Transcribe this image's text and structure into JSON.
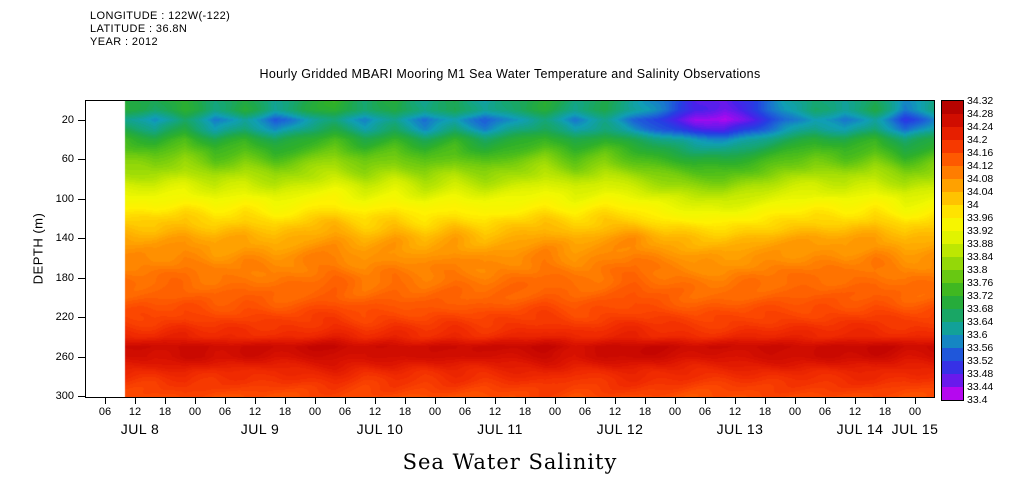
{
  "meta": {
    "longitude": "LONGITUDE : 122W(-122)",
    "latitude": "LATITUDE : 36.8N",
    "year": "YEAR : 2012"
  },
  "title": "Hourly Gridded MBARI Mooring M1 Sea Water Temperature and Salinity Observations",
  "axis": {
    "y_label": "DEPTH (m)",
    "x_title": "Sea Water Salinity",
    "y_ticks": [
      20,
      60,
      100,
      140,
      180,
      220,
      260,
      300
    ],
    "x_ticks": [
      {
        "hour": 6,
        "label": "06"
      },
      {
        "hour": 12,
        "label": "12"
      },
      {
        "hour": 18,
        "label": "18"
      },
      {
        "hour": 24,
        "label": "00"
      },
      {
        "hour": 30,
        "label": "06"
      },
      {
        "hour": 36,
        "label": "12"
      },
      {
        "hour": 42,
        "label": "18"
      },
      {
        "hour": 48,
        "label": "00"
      },
      {
        "hour": 54,
        "label": "06"
      },
      {
        "hour": 60,
        "label": "12"
      },
      {
        "hour": 66,
        "label": "18"
      },
      {
        "hour": 72,
        "label": "00"
      },
      {
        "hour": 78,
        "label": "06"
      },
      {
        "hour": 84,
        "label": "12"
      },
      {
        "hour": 90,
        "label": "18"
      },
      {
        "hour": 96,
        "label": "00"
      },
      {
        "hour": 102,
        "label": "06"
      },
      {
        "hour": 108,
        "label": "12"
      },
      {
        "hour": 114,
        "label": "18"
      },
      {
        "hour": 120,
        "label": "00"
      },
      {
        "hour": 126,
        "label": "06"
      },
      {
        "hour": 132,
        "label": "12"
      },
      {
        "hour": 138,
        "label": "18"
      },
      {
        "hour": 144,
        "label": "00"
      },
      {
        "hour": 150,
        "label": "06"
      },
      {
        "hour": 156,
        "label": "12"
      },
      {
        "hour": 162,
        "label": "18"
      },
      {
        "hour": 168,
        "label": "00"
      }
    ],
    "day_labels": [
      {
        "hour": 13,
        "label": "JUL 8"
      },
      {
        "hour": 37,
        "label": "JUL 9"
      },
      {
        "hour": 61,
        "label": "JUL 10"
      },
      {
        "hour": 85,
        "label": "JUL 11"
      },
      {
        "hour": 109,
        "label": "JUL 12"
      },
      {
        "hour": 133,
        "label": "JUL 13"
      },
      {
        "hour": 157,
        "label": "JUL 14"
      },
      {
        "hour": 168,
        "label": "JUL 15"
      }
    ]
  },
  "colorbar": {
    "labels": [
      "34.32",
      "34.28",
      "34.24",
      "34.2",
      "34.16",
      "34.12",
      "34.08",
      "34.04",
      "34",
      "33.96",
      "33.92",
      "33.88",
      "33.84",
      "33.8",
      "33.76",
      "33.72",
      "33.68",
      "33.64",
      "33.6",
      "33.56",
      "33.52",
      "33.48",
      "33.44",
      "33.4"
    ]
  },
  "chart_data": {
    "type": "heatmap",
    "title": "Hourly Gridded MBARI Mooring M1 Sea Water Temperature and Salinity Observations",
    "variable": "Sea Water Salinity",
    "ylabel": "DEPTH (m)",
    "y_axis_range_m": [
      0,
      302
    ],
    "x_axis_range_hours": [
      2,
      172
    ],
    "x_time_origin": "JUL 8 2012 00:00",
    "value_min": 33.4,
    "value_max": 34.32,
    "colorbar_step": 0.04,
    "depths_m": [
      10,
      20,
      30,
      40,
      60,
      80,
      100,
      120,
      140,
      160,
      180,
      200,
      220,
      240,
      250,
      260,
      275,
      300
    ],
    "time_hours": [
      10,
      16,
      22,
      28,
      34,
      40,
      46,
      52,
      58,
      64,
      70,
      76,
      82,
      88,
      94,
      100,
      106,
      112,
      118,
      124,
      130,
      136,
      142,
      148,
      154,
      160,
      166,
      172
    ],
    "values": [
      [
        33.7,
        33.66,
        33.72,
        33.64,
        33.7,
        33.62,
        33.68,
        33.72,
        33.65,
        33.7,
        33.63,
        33.68,
        33.61,
        33.66,
        33.7,
        33.64,
        33.68,
        33.62,
        33.56,
        33.48,
        33.45,
        33.52,
        33.6,
        33.66,
        33.62,
        33.68,
        33.57,
        33.64
      ],
      [
        33.64,
        33.58,
        33.66,
        33.56,
        33.62,
        33.54,
        33.6,
        33.65,
        33.57,
        33.63,
        33.55,
        33.61,
        33.54,
        33.6,
        33.64,
        33.57,
        33.62,
        33.55,
        33.5,
        33.44,
        33.42,
        33.48,
        33.55,
        33.6,
        33.56,
        33.62,
        33.51,
        33.58
      ],
      [
        33.68,
        33.62,
        33.7,
        33.6,
        33.66,
        33.58,
        33.64,
        33.68,
        33.61,
        33.66,
        33.59,
        33.65,
        33.58,
        33.63,
        33.67,
        33.6,
        33.65,
        33.59,
        33.54,
        33.49,
        33.47,
        33.53,
        33.59,
        33.64,
        33.6,
        33.66,
        33.55,
        33.62
      ],
      [
        33.74,
        33.7,
        33.76,
        33.68,
        33.73,
        33.66,
        33.71,
        33.75,
        33.69,
        33.73,
        33.67,
        33.72,
        33.66,
        33.7,
        33.74,
        33.68,
        33.72,
        33.67,
        33.63,
        33.59,
        33.58,
        33.62,
        33.67,
        33.71,
        33.68,
        33.73,
        33.64,
        33.7
      ],
      [
        33.8,
        33.78,
        33.82,
        33.76,
        33.8,
        33.75,
        33.79,
        33.82,
        33.77,
        33.8,
        33.76,
        33.79,
        33.75,
        33.78,
        33.81,
        33.76,
        33.8,
        33.76,
        33.73,
        33.7,
        33.69,
        33.72,
        33.76,
        33.79,
        33.76,
        33.8,
        33.73,
        33.78
      ],
      [
        33.86,
        33.85,
        33.88,
        33.84,
        33.87,
        33.83,
        33.86,
        33.88,
        33.84,
        33.87,
        33.83,
        33.86,
        33.83,
        33.85,
        33.88,
        33.84,
        33.87,
        33.84,
        33.81,
        33.79,
        33.78,
        33.81,
        33.84,
        33.86,
        33.84,
        33.87,
        33.82,
        33.85
      ],
      [
        33.93,
        33.92,
        33.95,
        33.91,
        33.94,
        33.9,
        33.93,
        33.95,
        33.91,
        33.94,
        33.9,
        33.93,
        33.9,
        33.92,
        33.94,
        33.91,
        33.94,
        33.92,
        33.89,
        33.87,
        33.86,
        33.89,
        33.91,
        33.93,
        33.91,
        33.94,
        33.89,
        33.92
      ],
      [
        34.0,
        33.99,
        34.02,
        33.98,
        34.01,
        33.97,
        34.0,
        34.02,
        33.98,
        34.01,
        33.97,
        34.0,
        33.97,
        33.99,
        34.01,
        33.98,
        34.01,
        34.0,
        33.96,
        33.95,
        33.94,
        33.96,
        33.98,
        34.0,
        33.98,
        34.01,
        33.96,
        33.99
      ],
      [
        34.06,
        34.05,
        34.07,
        34.04,
        34.06,
        34.03,
        34.06,
        34.07,
        34.04,
        34.06,
        34.03,
        34.06,
        34.03,
        34.05,
        34.07,
        34.04,
        34.06,
        34.08,
        34.04,
        34.03,
        34.02,
        34.04,
        34.05,
        34.06,
        34.05,
        34.07,
        34.03,
        34.05
      ],
      [
        34.09,
        34.08,
        34.1,
        34.07,
        34.09,
        34.07,
        34.09,
        34.1,
        34.07,
        34.09,
        34.07,
        34.09,
        34.07,
        34.08,
        34.1,
        34.08,
        34.09,
        34.11,
        34.08,
        34.07,
        34.06,
        34.08,
        34.08,
        34.09,
        34.08,
        34.1,
        34.07,
        34.08
      ],
      [
        34.11,
        34.11,
        34.12,
        34.1,
        34.11,
        34.1,
        34.11,
        34.12,
        34.1,
        34.11,
        34.1,
        34.11,
        34.1,
        34.11,
        34.12,
        34.1,
        34.11,
        34.13,
        34.11,
        34.1,
        34.09,
        34.11,
        34.11,
        34.12,
        34.11,
        34.12,
        34.1,
        34.11
      ],
      [
        34.13,
        34.13,
        34.14,
        34.12,
        34.14,
        34.12,
        34.13,
        34.14,
        34.12,
        34.13,
        34.12,
        34.13,
        34.12,
        34.13,
        34.14,
        34.13,
        34.13,
        34.15,
        34.13,
        34.12,
        34.12,
        34.13,
        34.13,
        34.14,
        34.13,
        34.14,
        34.12,
        34.13
      ],
      [
        34.17,
        34.16,
        34.18,
        34.16,
        34.17,
        34.16,
        34.17,
        34.18,
        34.16,
        34.17,
        34.16,
        34.17,
        34.16,
        34.17,
        34.18,
        34.16,
        34.17,
        34.18,
        34.17,
        34.16,
        34.16,
        34.17,
        34.17,
        34.17,
        34.17,
        34.18,
        34.16,
        34.17
      ],
      [
        34.21,
        34.2,
        34.22,
        34.2,
        34.21,
        34.2,
        34.21,
        34.22,
        34.2,
        34.21,
        34.2,
        34.21,
        34.2,
        34.21,
        34.22,
        34.2,
        34.21,
        34.22,
        34.21,
        34.2,
        34.2,
        34.21,
        34.21,
        34.21,
        34.21,
        34.22,
        34.2,
        34.21
      ],
      [
        34.27,
        34.26,
        34.28,
        34.26,
        34.27,
        34.26,
        34.27,
        34.28,
        34.26,
        34.27,
        34.26,
        34.27,
        34.26,
        34.27,
        34.28,
        34.26,
        34.27,
        34.28,
        34.27,
        34.26,
        34.26,
        34.27,
        34.27,
        34.27,
        34.27,
        34.28,
        34.26,
        34.27
      ],
      [
        34.26,
        34.25,
        34.27,
        34.25,
        34.26,
        34.25,
        34.26,
        34.27,
        34.25,
        34.26,
        34.25,
        34.26,
        34.25,
        34.26,
        34.27,
        34.25,
        34.26,
        34.27,
        34.26,
        34.25,
        34.25,
        34.26,
        34.26,
        34.26,
        34.26,
        34.27,
        34.25,
        34.26
      ],
      [
        34.21,
        34.2,
        34.22,
        34.2,
        34.21,
        34.2,
        34.21,
        34.22,
        34.2,
        34.21,
        34.2,
        34.21,
        34.2,
        34.21,
        34.22,
        34.2,
        34.21,
        34.22,
        34.21,
        34.2,
        34.2,
        34.21,
        34.21,
        34.21,
        34.21,
        34.22,
        34.2,
        34.21
      ],
      [
        34.16,
        34.15,
        34.17,
        34.15,
        34.16,
        34.15,
        34.16,
        34.17,
        34.15,
        34.16,
        34.15,
        34.16,
        34.15,
        34.16,
        34.17,
        34.15,
        34.16,
        34.17,
        34.16,
        34.15,
        34.15,
        34.16,
        34.16,
        34.16,
        34.16,
        34.17,
        34.15,
        34.16
      ]
    ],
    "color_stops": [
      {
        "v": 33.4,
        "c": "#e000f0"
      },
      {
        "v": 33.44,
        "c": "#8a10ee"
      },
      {
        "v": 33.48,
        "c": "#4722ea"
      },
      {
        "v": 33.52,
        "c": "#2440e2"
      },
      {
        "v": 33.56,
        "c": "#1a6ed2"
      },
      {
        "v": 33.6,
        "c": "#109eb4"
      },
      {
        "v": 33.64,
        "c": "#14a57e"
      },
      {
        "v": 33.68,
        "c": "#1ea84b"
      },
      {
        "v": 33.72,
        "c": "#2eb02a"
      },
      {
        "v": 33.76,
        "c": "#52c018"
      },
      {
        "v": 33.8,
        "c": "#7ed00c"
      },
      {
        "v": 33.84,
        "c": "#a9e004"
      },
      {
        "v": 33.88,
        "c": "#d2ee00"
      },
      {
        "v": 33.92,
        "c": "#f0f800"
      },
      {
        "v": 33.96,
        "c": "#fff200"
      },
      {
        "v": 34.0,
        "c": "#ffd400"
      },
      {
        "v": 34.04,
        "c": "#ffb200"
      },
      {
        "v": 34.08,
        "c": "#ff9000"
      },
      {
        "v": 34.12,
        "c": "#ff6a00"
      },
      {
        "v": 34.16,
        "c": "#fc4700"
      },
      {
        "v": 34.2,
        "c": "#f02a00"
      },
      {
        "v": 34.24,
        "c": "#dc1400"
      },
      {
        "v": 34.28,
        "c": "#c40500"
      },
      {
        "v": 34.32,
        "c": "#aa0000"
      }
    ]
  }
}
